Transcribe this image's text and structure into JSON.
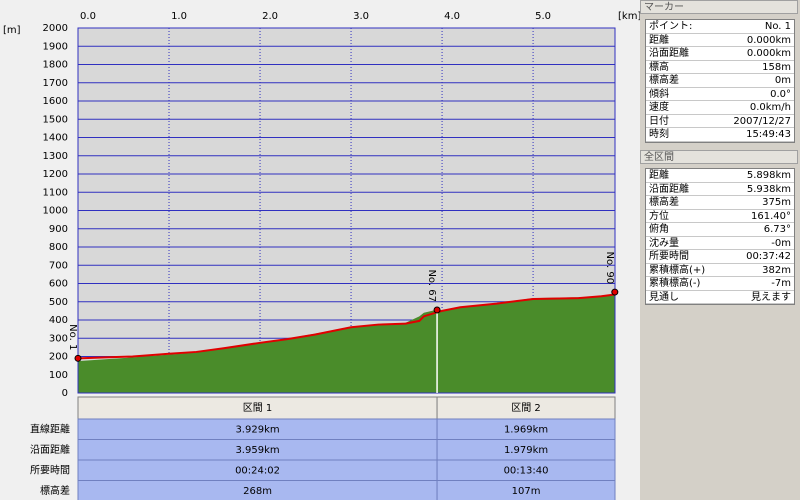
{
  "chart_data": {
    "type": "area",
    "y_unit_label": "[m]",
    "x_unit_label": "[km]",
    "xlim": [
      0,
      5.9
    ],
    "ylim": [
      0,
      2000
    ],
    "xticks": [
      {
        "value": 0,
        "label": "0.0"
      },
      {
        "value": 1,
        "label": "1.0"
      },
      {
        "value": 2,
        "label": "2.0"
      },
      {
        "value": 3,
        "label": "3.0"
      },
      {
        "value": 4,
        "label": "4.0"
      },
      {
        "value": 5,
        "label": "5.0"
      }
    ],
    "yticks": [
      0,
      100,
      200,
      300,
      400,
      500,
      600,
      700,
      800,
      900,
      1000,
      1100,
      1200,
      1300,
      1400,
      1500,
      1600,
      1700,
      1800,
      1900,
      2000
    ],
    "grid": true,
    "series": [
      {
        "color": "#4a8c2a",
        "x": [
          0,
          0.3,
          0.6,
          1.0,
          1.3,
          1.6,
          2.0,
          2.3,
          2.6,
          3.0,
          3.3,
          3.6,
          3.75,
          3.8,
          3.929,
          4.0,
          4.2,
          4.6,
          5.0,
          5.5,
          5.75,
          5.898
        ],
        "values": [
          175,
          185,
          195,
          210,
          222,
          245,
          275,
          298,
          325,
          360,
          375,
          385,
          420,
          440,
          455,
          450,
          468,
          492,
          520,
          525,
          528,
          535
        ]
      },
      {
        "color": "#e00000",
        "x": [
          0,
          0.3,
          0.6,
          1.0,
          1.3,
          1.6,
          2.0,
          2.3,
          2.6,
          3.0,
          3.3,
          3.6,
          3.75,
          3.8,
          3.929,
          4.0,
          4.2,
          4.6,
          5.0,
          5.5,
          5.75,
          5.898
        ],
        "values": [
          190,
          195,
          200,
          215,
          225,
          245,
          275,
          295,
          320,
          360,
          375,
          380,
          395,
          420,
          440,
          450,
          470,
          490,
          515,
          520,
          530,
          540
        ]
      }
    ],
    "markers": [
      {
        "label": "No. 1",
        "x": 0,
        "y": 190
      },
      {
        "label": "No. 67",
        "x": 3.945,
        "y": 455
      },
      {
        "label": "No. 90",
        "x": 5.898,
        "y": 553
      }
    ],
    "divider_x": 3.945
  },
  "section_table": {
    "headers": [
      "区間 1",
      "区間 2"
    ],
    "row_labels": [
      "直線距離",
      "沿面距離",
      "所要時間",
      "標高差"
    ],
    "rows": [
      [
        "3.929km",
        "1.969km"
      ],
      [
        "3.959km",
        "1.979km"
      ],
      [
        "00:24:02",
        "00:13:40"
      ],
      [
        "268m",
        "107m"
      ]
    ]
  },
  "marker_panel": {
    "title": "マーカー",
    "rows": [
      [
        "ポイント:",
        "No. 1"
      ],
      [
        "距離",
        "0.000km"
      ],
      [
        "沿面距離",
        "0.000km"
      ],
      [
        "標高",
        "158m"
      ],
      [
        "標高差",
        "0m"
      ],
      [
        "傾斜",
        "0.0°"
      ],
      [
        "速度",
        "0.0km/h"
      ],
      [
        "日付",
        "2007/12/27"
      ],
      [
        "時刻",
        "15:49:43"
      ]
    ]
  },
  "total_panel": {
    "title": "全区間",
    "rows": [
      [
        "距離",
        "5.898km"
      ],
      [
        "沿面距離",
        "5.938km"
      ],
      [
        "標高差",
        "375m"
      ],
      [
        "方位",
        "161.40°"
      ],
      [
        "俯角",
        "6.73°"
      ],
      [
        "沈み量",
        "-0m"
      ],
      [
        "所要時間",
        "00:37:42"
      ],
      [
        "累積標高(+)",
        "382m"
      ],
      [
        "累積標高(-)",
        "-7m"
      ],
      [
        "見通し",
        "見えます"
      ]
    ]
  }
}
